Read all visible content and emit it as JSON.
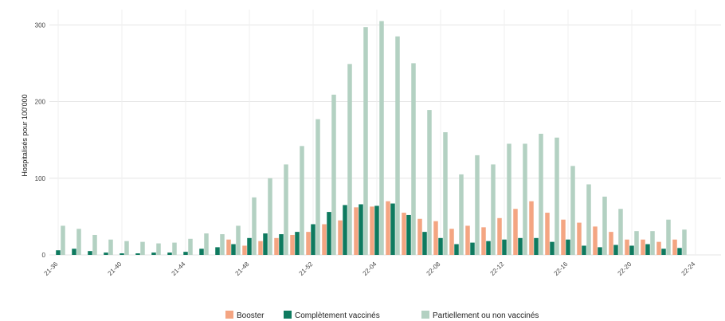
{
  "chart_data": {
    "type": "bar",
    "ylabel": "Hospitalisés pour 100'000",
    "xlabel": "",
    "ylim": [
      0,
      320
    ],
    "yticks": [
      0,
      100,
      200,
      300
    ],
    "grid": true,
    "legend_position": "bottom",
    "x_tick_labels": [
      "21-36",
      "21-40",
      "21-44",
      "21-48",
      "21-52",
      "22-04",
      "22-08",
      "22-12",
      "22-16",
      "22-20",
      "22-24"
    ],
    "x_tick_every": 4,
    "categories": [
      "21-36",
      "21-37",
      "21-38",
      "21-39",
      "21-40",
      "21-41",
      "21-42",
      "21-43",
      "21-44",
      "21-45",
      "21-46",
      "21-47",
      "21-48",
      "21-49",
      "21-50",
      "21-51",
      "21-52",
      "22-01",
      "22-02",
      "22-03",
      "22-04",
      "22-05",
      "22-06",
      "22-07",
      "22-08",
      "22-09",
      "22-10",
      "22-11",
      "22-12",
      "22-13",
      "22-14",
      "22-15",
      "22-16",
      "22-17",
      "22-18",
      "22-19",
      "22-20",
      "22-21",
      "22-22",
      "22-23"
    ],
    "series": [
      {
        "name": "Booster",
        "color": "#f4a582",
        "values": [
          0,
          0,
          0,
          0,
          0,
          0,
          0,
          0,
          0,
          0,
          0,
          20,
          12,
          18,
          22,
          26,
          30,
          40,
          45,
          62,
          63,
          70,
          55,
          47,
          44,
          34,
          38,
          36,
          48,
          60,
          70,
          55,
          46,
          42,
          37,
          30,
          20,
          20,
          17,
          20
        ]
      },
      {
        "name": "Complètement vaccinés",
        "color": "#0e7a5f",
        "values": [
          6,
          8,
          5,
          3,
          2,
          2,
          3,
          3,
          4,
          8,
          10,
          14,
          22,
          28,
          27,
          30,
          40,
          56,
          65,
          66,
          64,
          67,
          52,
          30,
          22,
          14,
          16,
          18,
          20,
          22,
          22,
          17,
          20,
          12,
          10,
          13,
          12,
          14,
          8,
          9
        ]
      },
      {
        "name": "Partiellement ou non vaccinés",
        "color": "#b3d1c2",
        "values": [
          38,
          34,
          26,
          20,
          18,
          17,
          15,
          16,
          21,
          28,
          27,
          38,
          75,
          100,
          118,
          142,
          177,
          209,
          249,
          297,
          305,
          285,
          250,
          189,
          160,
          105,
          130,
          118,
          145,
          145,
          158,
          153,
          116,
          92,
          76,
          60,
          31,
          31,
          46,
          33
        ]
      }
    ]
  }
}
